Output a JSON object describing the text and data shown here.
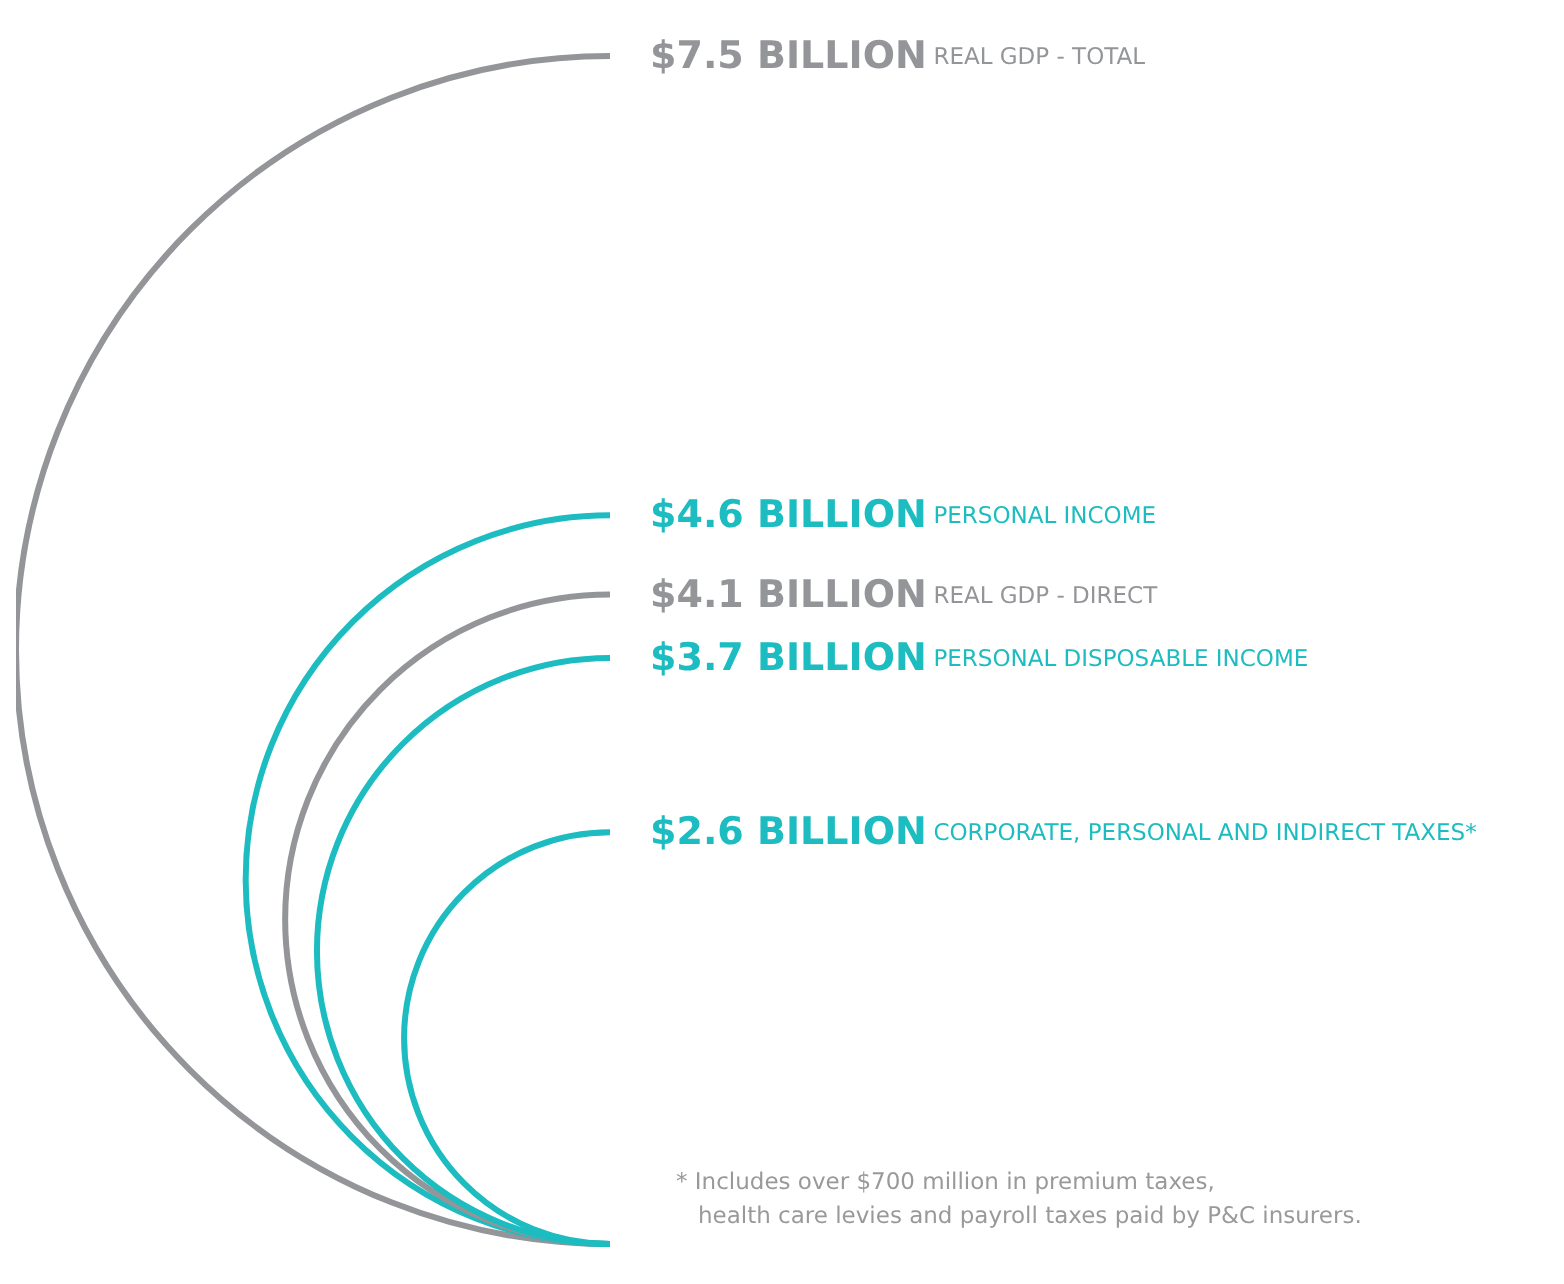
{
  "chart_data": {
    "type": "other",
    "categories": [
      "REAL GDP - TOTAL",
      "PERSONAL INCOME",
      "REAL GDP - DIRECT",
      "PERSONAL DISPOSABLE INCOME",
      "CORPORATE, PERSONAL AND INDIRECT TAXES*"
    ],
    "values": [
      7.5,
      4.6,
      4.1,
      3.7,
      2.6
    ],
    "value_labels": [
      "$7.5 BILLION",
      "$4.6 BILLION",
      "$4.1 BILLION",
      "$3.7 BILLION",
      "$2.6 BILLION"
    ],
    "colors": [
      "#939598",
      "#1cbcc0",
      "#939598",
      "#1cbcc0",
      "#1cbcc0"
    ],
    "annotations": [
      "* Includes over $700 million in premium taxes,\n   health care levies and payroll taxes paid by P&C insurers."
    ]
  }
}
